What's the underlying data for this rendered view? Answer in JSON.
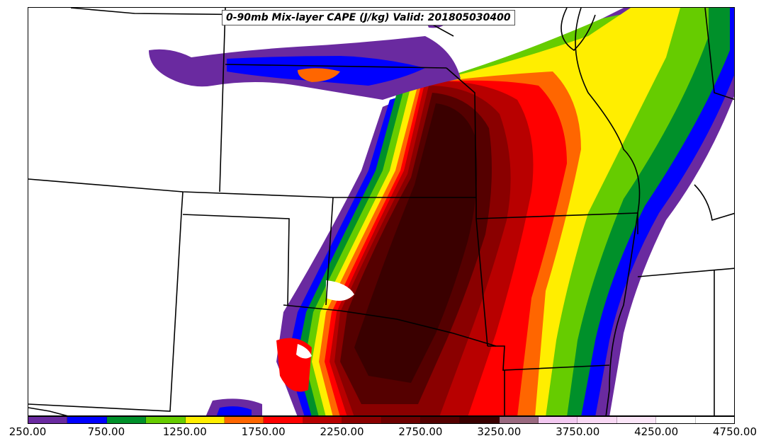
{
  "title": "0-90mb Mix-layer CAPE (J/kg) Valid: 201805030400",
  "colorbar": {
    "colors": [
      "#6a2aa0",
      "#0000ff",
      "#00902a",
      "#66cc00",
      "#ffee00",
      "#ff6600",
      "#ff0000",
      "#b80000",
      "#8a0000",
      "#6e0000",
      "#550000",
      "#3a0000",
      "#9a6a80",
      "#f2c8f0",
      "#f8d8f4",
      "#fbe6f8",
      "#ffffff",
      "#ffffff"
    ],
    "labels": [
      "250.00",
      "750.00",
      "1250.00",
      "1750.00",
      "2250.00",
      "2750.00",
      "3250.00",
      "3750.00",
      "4250.00",
      "4750.00"
    ],
    "range": [
      250,
      4750
    ]
  },
  "legend_units": "J/kg"
}
